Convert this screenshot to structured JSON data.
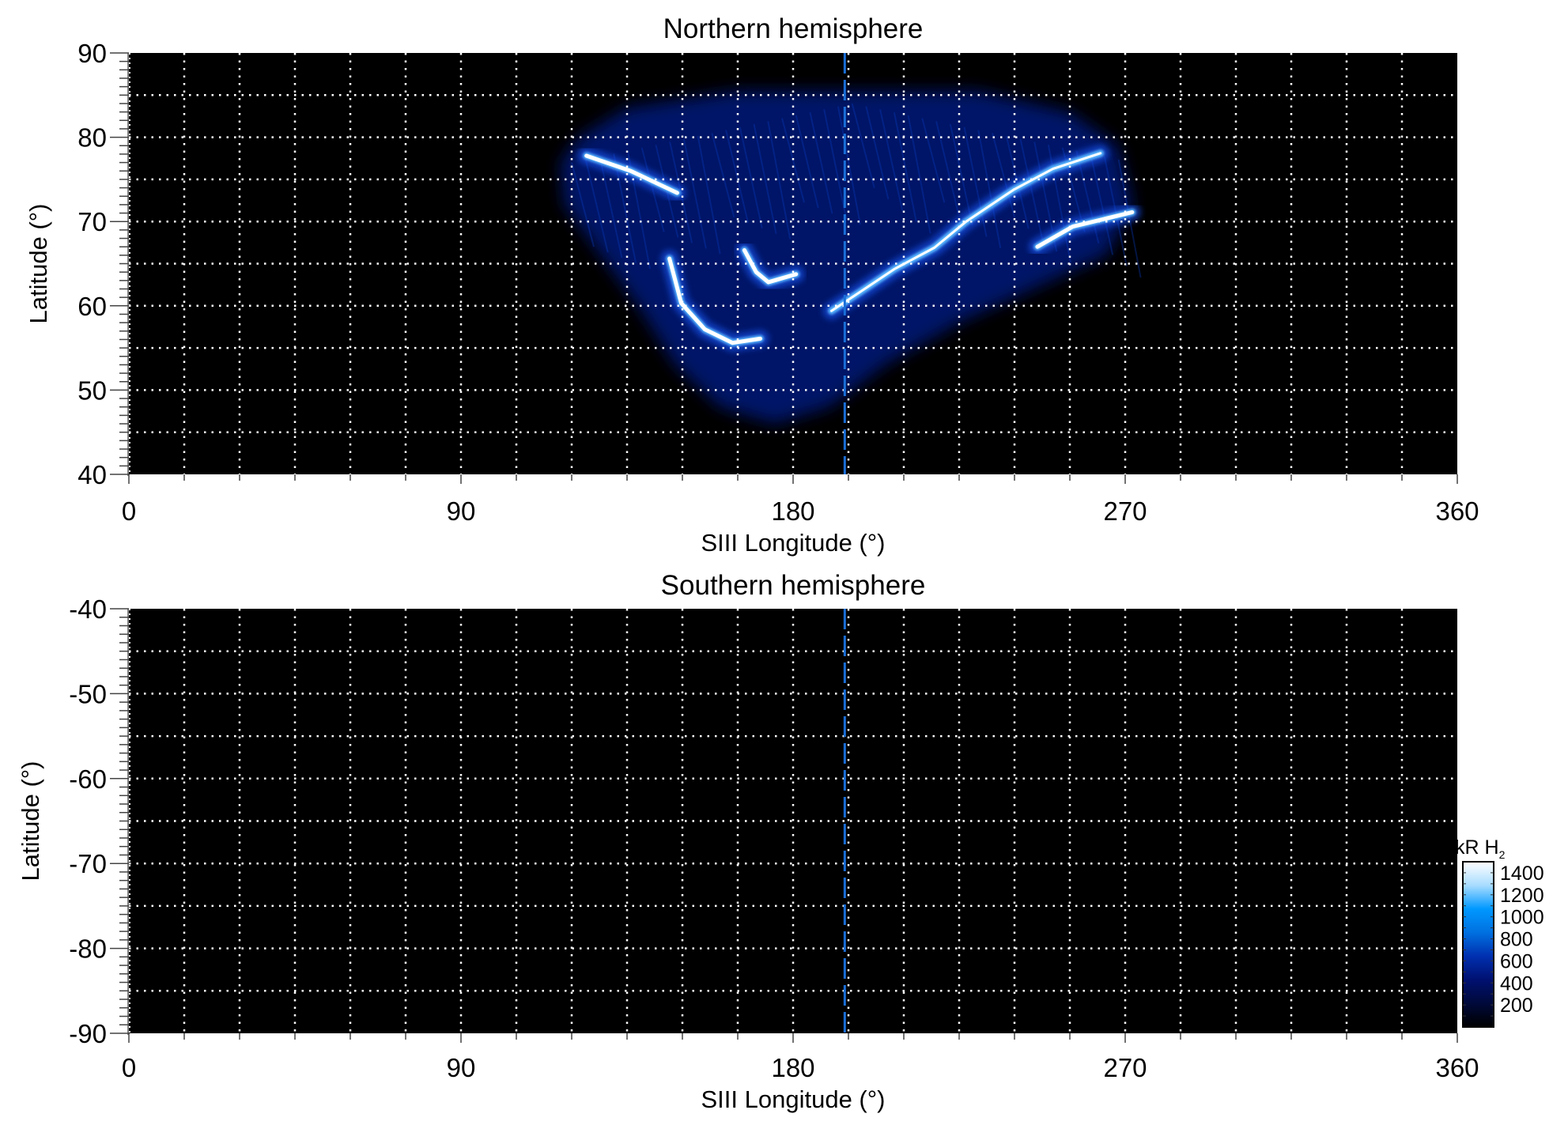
{
  "chart_data": [
    {
      "type": "heatmap",
      "title": "Northern hemisphere",
      "xlabel": "SIII Longitude (°)",
      "ylabel": "Latitude (°)",
      "xlim": [
        0,
        360
      ],
      "ylim": [
        40,
        90
      ],
      "xticks": [
        "0",
        "90",
        "180",
        "270",
        "360"
      ],
      "yticks": [
        "40",
        "50",
        "60",
        "70",
        "80",
        "90"
      ],
      "grid": true,
      "grid_style": "white dotted, every 15° longitude and 5° latitude",
      "background": "#000000",
      "reference_longitude": 194,
      "reference_line_color": "#1a6fd8",
      "emission_diffuse_region": [
        [
          122,
          80
        ],
        [
          135,
          83.5
        ],
        [
          150,
          84.5
        ],
        [
          165,
          85.5
        ],
        [
          230,
          85.5
        ],
        [
          255,
          83
        ],
        [
          268,
          79
        ],
        [
          272,
          72
        ],
        [
          265,
          66
        ],
        [
          245,
          62
        ],
        [
          225,
          58
        ],
        [
          205,
          53
        ],
        [
          190,
          48
        ],
        [
          175,
          46
        ],
        [
          160,
          48
        ],
        [
          148,
          53
        ],
        [
          138,
          60
        ],
        [
          128,
          66
        ],
        [
          118,
          72
        ],
        [
          117,
          77
        ]
      ],
      "emission_arcs": [
        {
          "points": [
            [
              146.5,
              65.6
            ],
            [
              149.7,
              60.3
            ],
            [
              156.1,
              57.2
            ],
            [
              163.6,
              55.6
            ],
            [
              171.1,
              56.1
            ]
          ],
          "peak_kR": 1500
        },
        {
          "points": [
            [
              124,
              77.8
            ],
            [
              136,
              76
            ],
            [
              148.6,
              73.4
            ]
          ],
          "peak_kR": 1500
        },
        {
          "points": [
            [
              166.8,
              66.6
            ],
            [
              170,
              64
            ],
            [
              173.3,
              62.8
            ],
            [
              180.8,
              63.75
            ]
          ],
          "peak_kR": 1400
        },
        {
          "points": [
            [
              190.4,
              59.4
            ],
            [
              196.8,
              61.25
            ],
            [
              207.6,
              64.4
            ],
            [
              218.3,
              66.9
            ],
            [
              226.9,
              70
            ],
            [
              239.7,
              73.75
            ],
            [
              250.4,
              76.25
            ],
            [
              263.3,
              78.1
            ]
          ],
          "peak_kR": 1200
        },
        {
          "points": [
            [
              246.2,
              67
            ],
            [
              255.8,
              69.4
            ],
            [
              271.9,
              71.1
            ]
          ],
          "peak_kR": 1400
        }
      ]
    },
    {
      "type": "heatmap",
      "title": "Southern hemisphere",
      "xlabel": "SIII Longitude (°)",
      "ylabel": "Latitude (°)",
      "xlim": [
        0,
        360
      ],
      "ylim": [
        -90,
        -40
      ],
      "xticks": [
        "0",
        "90",
        "180",
        "270",
        "360"
      ],
      "yticks": [
        "-40",
        "-50",
        "-60",
        "-70",
        "-80",
        "-90"
      ],
      "grid": true,
      "background": "#000000",
      "reference_longitude": 194,
      "reference_line_color": "#1a6fd8"
    }
  ],
  "colorbar": {
    "label": "kR H",
    "label_subscript": "2",
    "ticks": [
      "200",
      "400",
      "600",
      "800",
      "1000",
      "1200",
      "1400"
    ],
    "range": [
      0,
      1500
    ],
    "colors": [
      "#000000",
      "#000a3a",
      "#001070",
      "#0030b0",
      "#0070e0",
      "#0098ff",
      "#a8dcff",
      "#ffffff"
    ]
  }
}
